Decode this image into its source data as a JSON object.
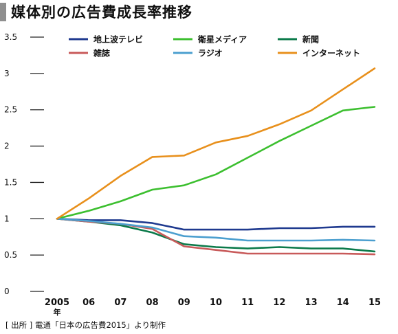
{
  "page": {
    "title": "媒体別の広告費成長率推移"
  },
  "source": "[ 出所 ] 電通「日本の広告費2015」より制作",
  "x_unit_label": "年",
  "chart_data": {
    "type": "line",
    "title": "媒体別の広告費成長率推移",
    "categories": [
      "2005",
      "06",
      "07",
      "08",
      "09",
      "10",
      "11",
      "12",
      "13",
      "14",
      "15"
    ],
    "ylim": [
      0,
      3.5
    ],
    "yticks": [
      "0",
      "0.5",
      "1",
      "1.5",
      "2",
      "2.5",
      "3",
      "3.5"
    ],
    "grid": false,
    "legend": "top",
    "series": [
      {
        "name": "地上波テレビ",
        "color": "#1f3a8f",
        "values": [
          1.0,
          0.98,
          0.98,
          0.94,
          0.85,
          0.85,
          0.85,
          0.87,
          0.87,
          0.89,
          0.89
        ]
      },
      {
        "name": "衛星メディア",
        "color": "#3cbf2f",
        "values": [
          1.0,
          1.11,
          1.24,
          1.4,
          1.46,
          1.61,
          1.84,
          2.07,
          2.28,
          2.49,
          2.54
        ]
      },
      {
        "name": "新聞",
        "color": "#0b7a4a",
        "values": [
          1.0,
          0.96,
          0.91,
          0.81,
          0.65,
          0.61,
          0.59,
          0.61,
          0.59,
          0.59,
          0.55
        ]
      },
      {
        "name": "雑誌",
        "color": "#c85a5a",
        "values": [
          1.0,
          0.96,
          0.93,
          0.86,
          0.62,
          0.57,
          0.52,
          0.52,
          0.52,
          0.52,
          0.51
        ]
      },
      {
        "name": "ラジオ",
        "color": "#4b9fcf",
        "values": [
          1.0,
          0.97,
          0.93,
          0.88,
          0.76,
          0.74,
          0.7,
          0.7,
          0.7,
          0.71,
          0.7
        ]
      },
      {
        "name": "インターネット",
        "color": "#e8901c",
        "values": [
          1.0,
          1.28,
          1.59,
          1.85,
          1.87,
          2.05,
          2.14,
          2.3,
          2.49,
          2.78,
          3.07
        ]
      }
    ]
  }
}
